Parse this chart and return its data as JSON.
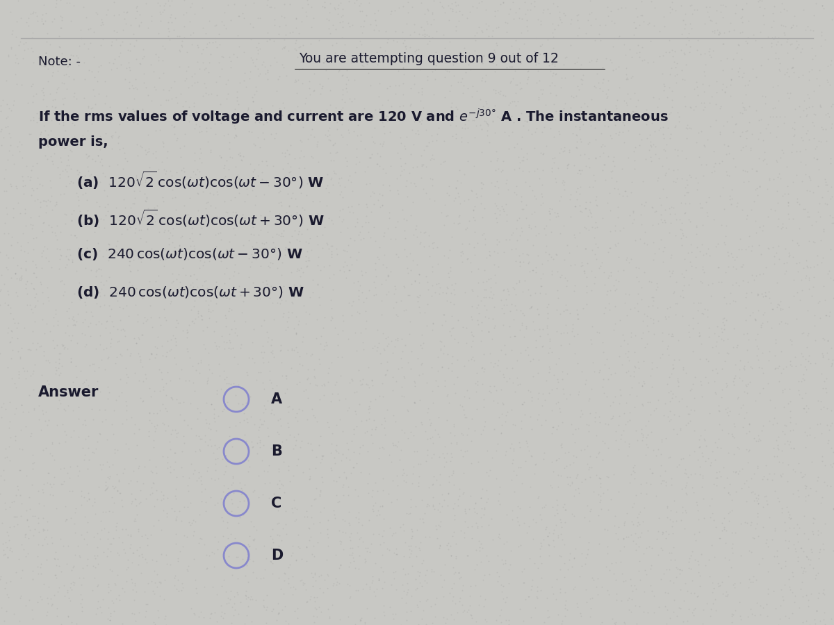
{
  "bg_color": "#c8c8c4",
  "text_color_dark": "#1a1a2e",
  "text_color_note": "#1a1a2e",
  "header_text": "You are attempting question 9 out of 12",
  "note_text": "Note: -",
  "answer_label": "Answer",
  "radio_labels": [
    "A",
    "B",
    "C",
    "D"
  ],
  "radio_color": "#8888cc",
  "line_color": "#555555",
  "figsize": [
    12.0,
    9.0
  ],
  "dpi": 100
}
